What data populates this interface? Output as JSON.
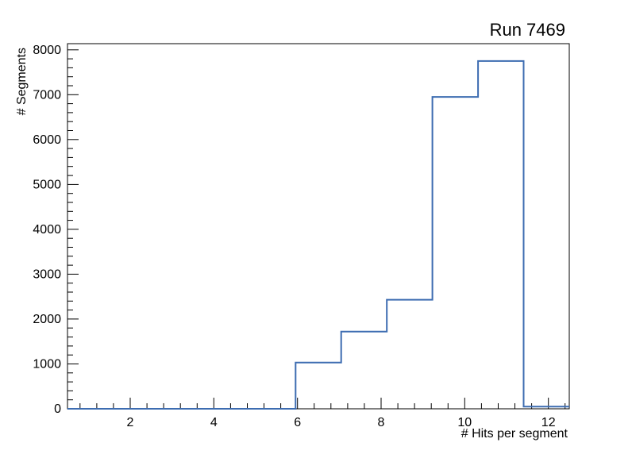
{
  "chart_data": {
    "type": "bar",
    "style": "step-outline-histogram",
    "title": "Run 7469",
    "xlabel": "# Hits per segment",
    "ylabel": "# Segments",
    "xlim": [
      0.5,
      12.5
    ],
    "ylim": [
      0,
      8000
    ],
    "bin_edges": [
      0.5,
      1.5909,
      2.6818,
      3.7727,
      4.8636,
      5.9545,
      7.0455,
      8.1364,
      9.2273,
      10.3182,
      11.4091,
      12.5
    ],
    "counts": [
      0,
      0,
      0,
      0,
      0,
      1030,
      1720,
      2430,
      6950,
      7750,
      50
    ],
    "x_major_ticks": [
      2,
      4,
      6,
      8,
      10,
      12
    ],
    "y_major_ticks": [
      0,
      1000,
      2000,
      3000,
      4000,
      5000,
      6000,
      7000,
      8000
    ],
    "line_color": "#3d6cb1",
    "frame_color": "#000000",
    "background_color": "#ffffff",
    "grid": false,
    "legend": "none"
  }
}
